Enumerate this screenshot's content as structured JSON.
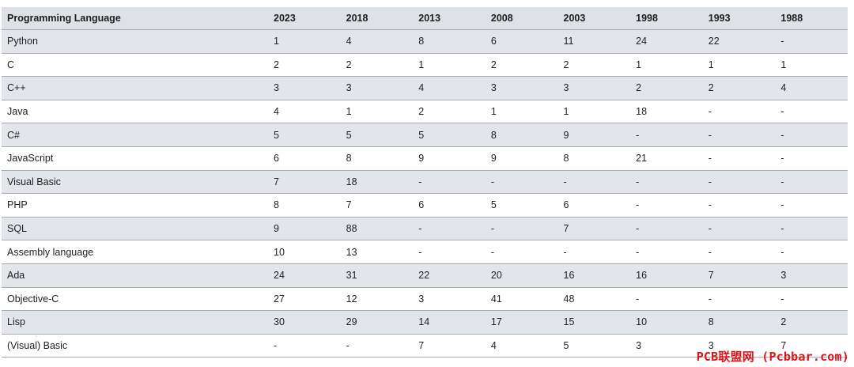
{
  "header": [
    "Programming Language",
    "2023",
    "2018",
    "2013",
    "2008",
    "2003",
    "1998",
    "1993",
    "1988"
  ],
  "rows": [
    [
      "Python",
      "1",
      "4",
      "8",
      "6",
      "11",
      "24",
      "22",
      "-"
    ],
    [
      "C",
      "2",
      "2",
      "1",
      "2",
      "2",
      "1",
      "1",
      "1"
    ],
    [
      "C++",
      "3",
      "3",
      "4",
      "3",
      "3",
      "2",
      "2",
      "4"
    ],
    [
      "Java",
      "4",
      "1",
      "2",
      "1",
      "1",
      "18",
      "-",
      "-"
    ],
    [
      "C#",
      "5",
      "5",
      "5",
      "8",
      "9",
      "-",
      "-",
      "-"
    ],
    [
      "JavaScript",
      "6",
      "8",
      "9",
      "9",
      "8",
      "21",
      "-",
      "-"
    ],
    [
      "Visual Basic",
      "7",
      "18",
      "-",
      "-",
      "-",
      "-",
      "-",
      "-"
    ],
    [
      "PHP",
      "8",
      "7",
      "6",
      "5",
      "6",
      "-",
      "-",
      "-"
    ],
    [
      "SQL",
      "9",
      "88",
      "-",
      "-",
      "7",
      "-",
      "-",
      "-"
    ],
    [
      "Assembly language",
      "10",
      "13",
      "-",
      "-",
      "-",
      "-",
      "-",
      "-"
    ],
    [
      "Ada",
      "24",
      "31",
      "22",
      "20",
      "16",
      "16",
      "7",
      "3"
    ],
    [
      "Objective-C",
      "27",
      "12",
      "3",
      "41",
      "48",
      "-",
      "-",
      "-"
    ],
    [
      "Lisp",
      "30",
      "29",
      "14",
      "17",
      "15",
      "10",
      "8",
      "2"
    ],
    [
      "(Visual) Basic",
      "-",
      "-",
      "7",
      "4",
      "5",
      "3",
      "3",
      "7"
    ]
  ],
  "watermark": "PCB联盟网 (Pcbbar.com)",
  "colors": {
    "header_bg": "#dee1e6",
    "stripe_bg": "#e2e5ea",
    "row_border": "#a7abb1",
    "watermark": "#e0151b"
  }
}
